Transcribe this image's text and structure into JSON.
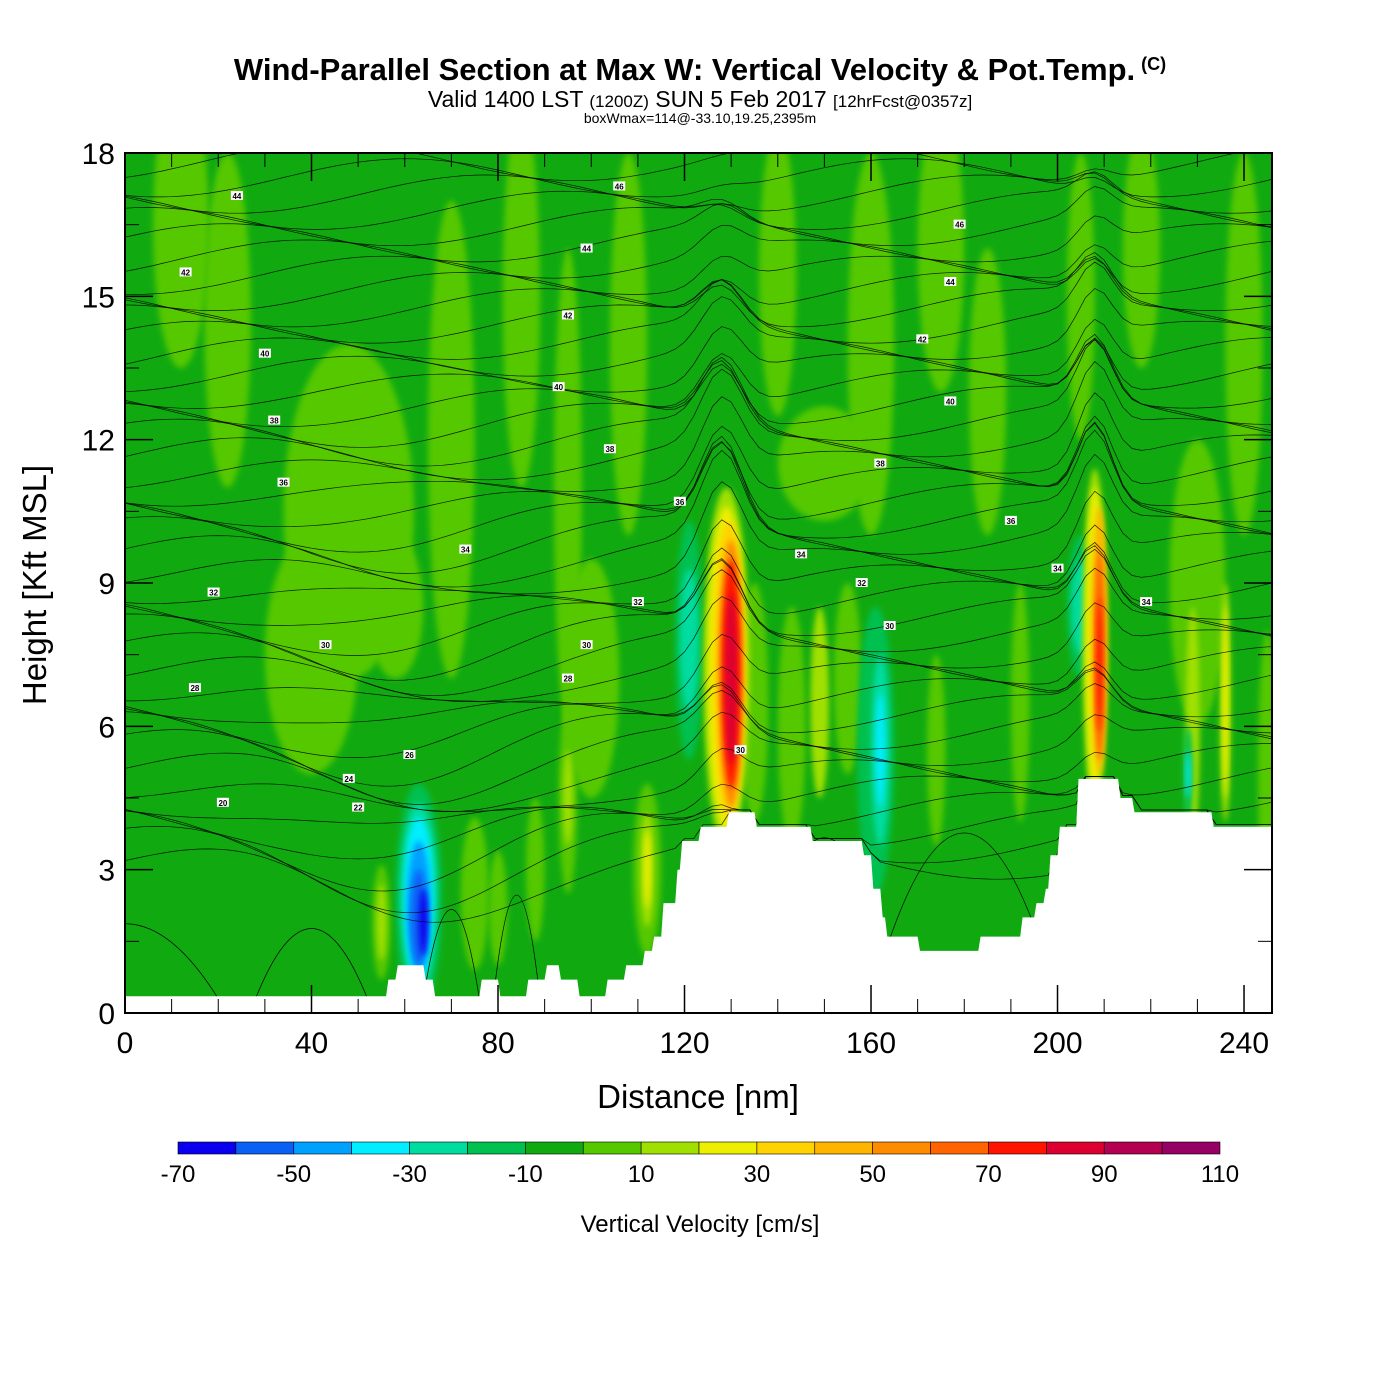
{
  "title": "Wind-Parallel Section at Max W: Vertical Velocity & Pot.Temp.",
  "copyright_mark": "(C)",
  "subtitle": {
    "part1": "Valid 1400 LST",
    "part2": "(1200Z)",
    "part3": "SUN 5 Feb 2017",
    "part4": "[12hrFcst@0357z]"
  },
  "subsubtitle": "boxWmax=114@-33.10,19.25,2395m",
  "chart_data": {
    "type": "heatmap",
    "xlabel": "Distance [nm]",
    "ylabel": "Height [Kft MSL]",
    "xlim": [
      0,
      246
    ],
    "ylim": [
      0,
      18
    ],
    "x_ticks": [
      0,
      40,
      80,
      120,
      160,
      200,
      240
    ],
    "y_ticks": [
      0,
      3,
      6,
      9,
      12,
      15,
      18
    ],
    "colorbar": {
      "label": "Vertical Velocity [cm/s]",
      "levels": [
        -70,
        -60,
        -50,
        -40,
        -30,
        -20,
        -10,
        0,
        10,
        20,
        30,
        40,
        50,
        60,
        70,
        80,
        90,
        100,
        110
      ],
      "tick_labels": [
        -70,
        -50,
        -30,
        -10,
        10,
        30,
        50,
        70,
        90,
        110
      ],
      "colors": [
        "#0b00ee",
        "#0a60f5",
        "#00a0ff",
        "#00eeff",
        "#00dca0",
        "#00c050",
        "#10aa10",
        "#55c800",
        "#a0e000",
        "#eeee00",
        "#ffd200",
        "#ffb400",
        "#ff8c00",
        "#ff6400",
        "#ff1400",
        "#dc0030",
        "#b40050",
        "#960064"
      ]
    },
    "terrain": [
      [
        0,
        0.35
      ],
      [
        10,
        0.35
      ],
      [
        20,
        0.35
      ],
      [
        30,
        0.35
      ],
      [
        40,
        0.35
      ],
      [
        50,
        0.35
      ],
      [
        56,
        0.35
      ],
      [
        56.5,
        0.7
      ],
      [
        58,
        0.7
      ],
      [
        58.5,
        1.0
      ],
      [
        64,
        1.0
      ],
      [
        64.5,
        0.7
      ],
      [
        66,
        0.7
      ],
      [
        66.5,
        0.35
      ],
      [
        76,
        0.35
      ],
      [
        76.5,
        0.7
      ],
      [
        80,
        0.7
      ],
      [
        80.5,
        0.35
      ],
      [
        86,
        0.35
      ],
      [
        86.5,
        0.7
      ],
      [
        90,
        0.7
      ],
      [
        90.5,
        1.0
      ],
      [
        93,
        1.0
      ],
      [
        93.5,
        0.7
      ],
      [
        97,
        0.7
      ],
      [
        97.5,
        0.35
      ],
      [
        103,
        0.35
      ],
      [
        103.5,
        0.7
      ],
      [
        107,
        0.7
      ],
      [
        107.5,
        1.0
      ],
      [
        111,
        1.0
      ],
      [
        111.5,
        1.3
      ],
      [
        113,
        1.3
      ],
      [
        113.5,
        1.6
      ],
      [
        115,
        1.6
      ],
      [
        115.5,
        2.3
      ],
      [
        118,
        2.3
      ],
      [
        118.5,
        3.0
      ],
      [
        119,
        3.0
      ],
      [
        119.5,
        3.6
      ],
      [
        123,
        3.6
      ],
      [
        123.5,
        3.9
      ],
      [
        129,
        3.9
      ],
      [
        129.5,
        4.2
      ],
      [
        135,
        4.2
      ],
      [
        135.5,
        3.9
      ],
      [
        147,
        3.9
      ],
      [
        147.5,
        3.6
      ],
      [
        158,
        3.6
      ],
      [
        158.5,
        3.3
      ],
      [
        160,
        3.3
      ],
      [
        160.5,
        2.6
      ],
      [
        162,
        2.6
      ],
      [
        162.5,
        2.0
      ],
      [
        163,
        2.0
      ],
      [
        163.5,
        1.6
      ],
      [
        170,
        1.6
      ],
      [
        170.5,
        1.3
      ],
      [
        183,
        1.3
      ],
      [
        183.5,
        1.6
      ],
      [
        192,
        1.6
      ],
      [
        192.5,
        2.0
      ],
      [
        195,
        2.0
      ],
      [
        195.5,
        2.3
      ],
      [
        197,
        2.3
      ],
      [
        197.5,
        2.6
      ],
      [
        198,
        2.6
      ],
      [
        198.5,
        3.3
      ],
      [
        200,
        3.3
      ],
      [
        200.5,
        3.9
      ],
      [
        204,
        3.9
      ],
      [
        204.5,
        4.9
      ],
      [
        213,
        4.9
      ],
      [
        213.5,
        4.5
      ],
      [
        216,
        4.5
      ],
      [
        216.5,
        4.2
      ],
      [
        233,
        4.2
      ],
      [
        233.5,
        3.9
      ],
      [
        246,
        3.9
      ]
    ],
    "contour_labels": [
      {
        "text": "44",
        "x": 24,
        "y": 17.1
      },
      {
        "text": "46",
        "x": 106,
        "y": 17.3
      },
      {
        "text": "44",
        "x": 99,
        "y": 16.0
      },
      {
        "text": "46",
        "x": 179,
        "y": 16.5
      },
      {
        "text": "42",
        "x": 13,
        "y": 15.5
      },
      {
        "text": "44",
        "x": 177,
        "y": 15.3
      },
      {
        "text": "42",
        "x": 95,
        "y": 14.6
      },
      {
        "text": "40",
        "x": 30,
        "y": 13.8
      },
      {
        "text": "42",
        "x": 171,
        "y": 14.1
      },
      {
        "text": "40",
        "x": 93,
        "y": 13.1
      },
      {
        "text": "40",
        "x": 177,
        "y": 12.8
      },
      {
        "text": "38",
        "x": 32,
        "y": 12.4
      },
      {
        "text": "38",
        "x": 104,
        "y": 11.8
      },
      {
        "text": "38",
        "x": 162,
        "y": 11.5
      },
      {
        "text": "36",
        "x": 34,
        "y": 11.1
      },
      {
        "text": "36",
        "x": 119,
        "y": 10.7
      },
      {
        "text": "36",
        "x": 190,
        "y": 10.3
      },
      {
        "text": "34",
        "x": 73,
        "y": 9.7
      },
      {
        "text": "34",
        "x": 145,
        "y": 9.6
      },
      {
        "text": "34",
        "x": 200,
        "y": 9.3
      },
      {
        "text": "32",
        "x": 19,
        "y": 8.8
      },
      {
        "text": "32",
        "x": 158,
        "y": 9.0
      },
      {
        "text": "32",
        "x": 110,
        "y": 8.6
      },
      {
        "text": "34",
        "x": 219,
        "y": 8.6
      },
      {
        "text": "30",
        "x": 164,
        "y": 8.1
      },
      {
        "text": "30",
        "x": 43,
        "y": 7.7
      },
      {
        "text": "30",
        "x": 99,
        "y": 7.7
      },
      {
        "text": "28",
        "x": 95,
        "y": 7.0
      },
      {
        "text": "28",
        "x": 15,
        "y": 6.8
      },
      {
        "text": "30",
        "x": 132,
        "y": 5.5
      },
      {
        "text": "26",
        "x": 61,
        "y": 5.4
      },
      {
        "text": "24",
        "x": 48,
        "y": 4.9
      },
      {
        "text": "20",
        "x": 21,
        "y": 4.4
      },
      {
        "text": "22",
        "x": 50,
        "y": 4.3
      }
    ]
  }
}
